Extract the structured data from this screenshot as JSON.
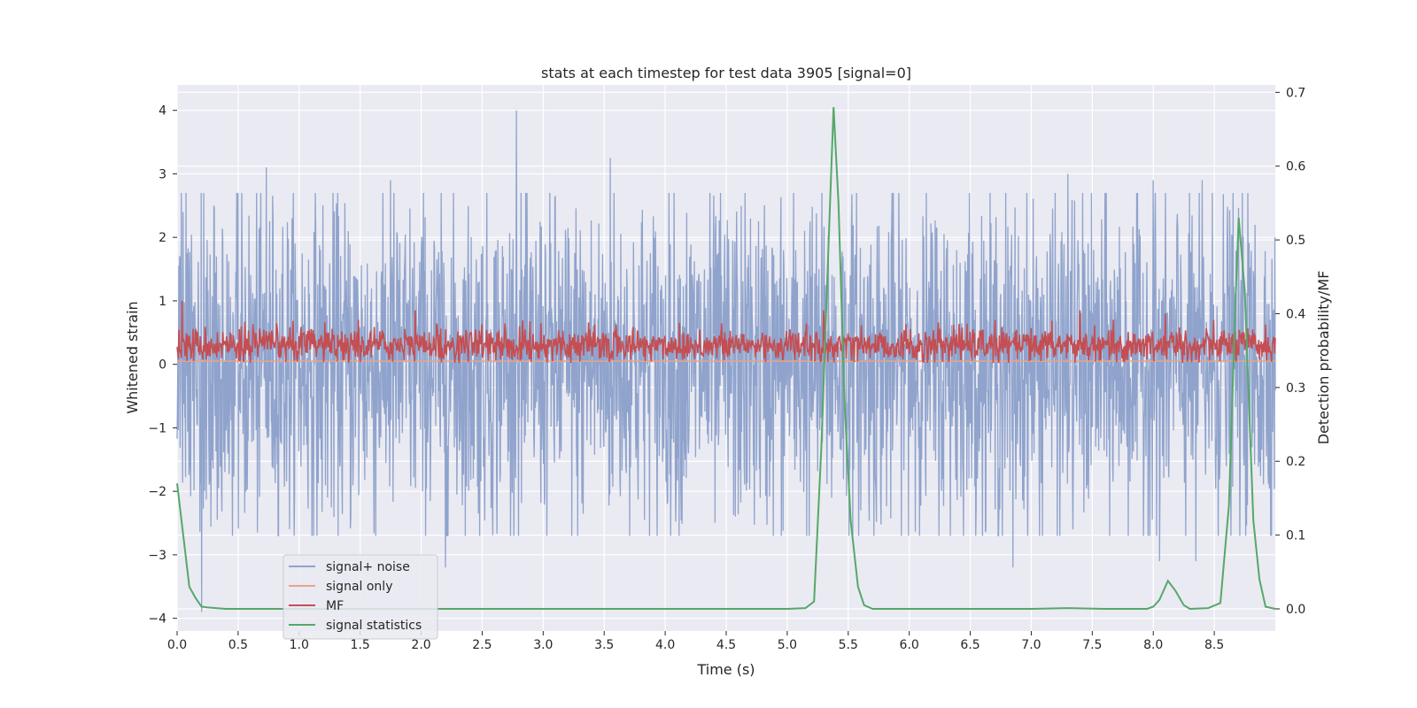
{
  "chart_data": {
    "type": "line",
    "title": "stats at each timestep for test data 3905 [signal=0]",
    "xlabel": "Time (s)",
    "ylabel": "Whitened strain",
    "y2label": "Detection probability/MF",
    "xlim": [
      0.0,
      9.0
    ],
    "ylim": [
      -4.2,
      4.4
    ],
    "y2lim": [
      -0.03,
      0.71
    ],
    "grid": true,
    "legend_position": "lower-left",
    "x_ticks": [
      "0.0",
      "0.5",
      "1.0",
      "1.5",
      "2.0",
      "2.5",
      "3.0",
      "3.5",
      "4.0",
      "4.5",
      "5.0",
      "5.5",
      "6.0",
      "6.5",
      "7.0",
      "7.5",
      "8.0",
      "8.5"
    ],
    "y_ticks": [
      "4",
      "3",
      "2",
      "1",
      "0",
      "−1",
      "−2",
      "−3",
      "−4"
    ],
    "y2_ticks": [
      "0.7",
      "0.6",
      "0.5",
      "0.4",
      "0.3",
      "0.2",
      "0.1",
      "0.0"
    ],
    "series": [
      {
        "name": "signal+ noise",
        "color": "#8fa3cc",
        "axis": "left",
        "approx_amplitude": 1.3,
        "peaks": [
          {
            "x": 0.05,
            "y": 2.4
          },
          {
            "x": 0.3,
            "y": 2.5
          },
          {
            "x": 0.73,
            "y": 3.1
          },
          {
            "x": 1.75,
            "y": 2.9
          },
          {
            "x": 2.78,
            "y": 4.0
          },
          {
            "x": 3.55,
            "y": 3.25
          },
          {
            "x": 7.3,
            "y": 3.0
          },
          {
            "x": 8.0,
            "y": 2.9
          },
          {
            "x": 8.4,
            "y": 2.9
          },
          {
            "x": 0.2,
            "y": -3.9
          },
          {
            "x": 2.2,
            "y": -3.2
          },
          {
            "x": 6.85,
            "y": -3.2
          },
          {
            "x": 8.05,
            "y": -3.1
          },
          {
            "x": 8.35,
            "y": -3.1
          }
        ]
      },
      {
        "name": "signal only",
        "color": "#e7a58a",
        "axis": "left",
        "points": [
          [
            0.0,
            0.05
          ],
          [
            9.0,
            0.05
          ]
        ]
      },
      {
        "name": "MF",
        "color": "#c44e52",
        "axis": "left",
        "approx_mean": 0.3,
        "approx_amplitude": 0.25,
        "peaks": [
          {
            "x": 0.04,
            "y": 1.0
          },
          {
            "x": 1.95,
            "y": 0.85
          },
          {
            "x": 5.3,
            "y": 0.85
          },
          {
            "x": 7.4,
            "y": 0.85
          },
          {
            "x": 8.1,
            "y": 0.8
          }
        ]
      },
      {
        "name": "signal statistics",
        "color": "#55a868",
        "axis": "right",
        "points": [
          [
            0.0,
            0.17
          ],
          [
            0.05,
            0.1
          ],
          [
            0.1,
            0.03
          ],
          [
            0.15,
            0.015
          ],
          [
            0.2,
            0.003
          ],
          [
            0.25,
            0.002
          ],
          [
            0.4,
            0.0
          ],
          [
            0.6,
            0.0
          ],
          [
            1.0,
            0.0
          ],
          [
            2.0,
            0.0
          ],
          [
            3.0,
            0.0
          ],
          [
            4.0,
            0.0
          ],
          [
            4.5,
            0.0
          ],
          [
            5.0,
            0.0
          ],
          [
            5.15,
            0.001
          ],
          [
            5.22,
            0.01
          ],
          [
            5.28,
            0.22
          ],
          [
            5.34,
            0.5
          ],
          [
            5.38,
            0.68
          ],
          [
            5.42,
            0.55
          ],
          [
            5.47,
            0.28
          ],
          [
            5.52,
            0.12
          ],
          [
            5.58,
            0.03
          ],
          [
            5.63,
            0.005
          ],
          [
            5.7,
            0.0
          ],
          [
            6.0,
            0.0
          ],
          [
            6.5,
            0.0
          ],
          [
            7.0,
            0.0
          ],
          [
            7.3,
            0.001
          ],
          [
            7.6,
            0.0
          ],
          [
            7.95,
            0.0
          ],
          [
            8.0,
            0.003
          ],
          [
            8.05,
            0.012
          ],
          [
            8.12,
            0.038
          ],
          [
            8.18,
            0.025
          ],
          [
            8.25,
            0.005
          ],
          [
            8.3,
            0.0
          ],
          [
            8.45,
            0.001
          ],
          [
            8.55,
            0.008
          ],
          [
            8.62,
            0.14
          ],
          [
            8.67,
            0.4
          ],
          [
            8.7,
            0.53
          ],
          [
            8.75,
            0.43
          ],
          [
            8.82,
            0.12
          ],
          [
            8.87,
            0.04
          ],
          [
            8.92,
            0.003
          ],
          [
            9.0,
            0.0
          ]
        ]
      }
    ]
  }
}
